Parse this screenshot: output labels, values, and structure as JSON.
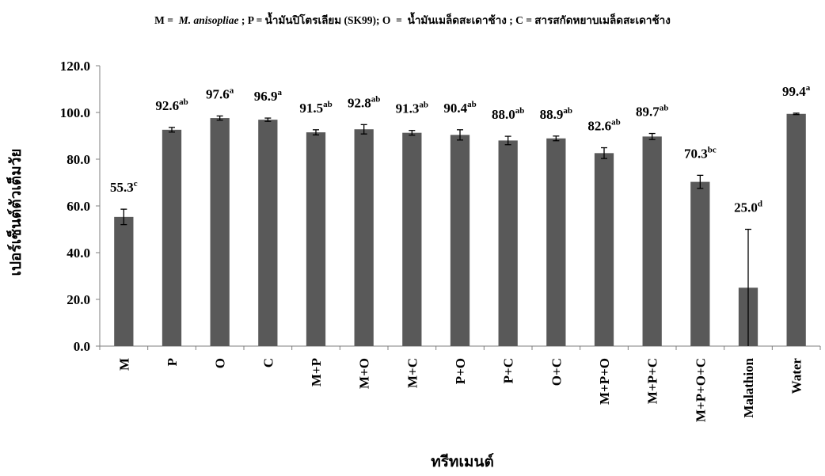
{
  "legend_line": {
    "m_key": "M",
    "eq1": " =  ",
    "m_name": "M. anisopliae",
    "p_part": " ; P = น้ำมันปิโตรเลียม (SK99); O  =  น้ำมันเมล็ดสะเดาช้าง ; C = สารสกัดหยาบเมล็ดสะเดาช้าง"
  },
  "chart_data": {
    "type": "bar",
    "categories": [
      "M",
      "P",
      "O",
      "C",
      "M+P",
      "M+O",
      "M+C",
      "P+O",
      "P+C",
      "O+C",
      "M+P+O",
      "M+P+C",
      "M+P+O+C",
      "Malathion",
      "Water"
    ],
    "values": [
      55.3,
      92.6,
      97.6,
      96.9,
      91.5,
      92.8,
      91.3,
      90.4,
      88.0,
      88.9,
      82.6,
      89.7,
      70.3,
      25.0,
      99.4
    ],
    "error": [
      3.3,
      1.0,
      0.9,
      0.7,
      1.1,
      2.0,
      1.0,
      2.2,
      1.8,
      1.0,
      2.3,
      1.3,
      2.8,
      25.0,
      0.3
    ],
    "value_labels": [
      "55.3",
      "92.6",
      "97.6",
      "96.9",
      "91.5",
      "92.8",
      "91.3",
      "90.4",
      "88.0",
      "88.9",
      "82.6",
      "89.7",
      "70.3",
      "25.0",
      "99.4"
    ],
    "significance": [
      "c",
      "ab",
      "a",
      "a",
      "ab",
      "ab",
      "ab",
      "ab",
      "ab",
      "ab",
      "ab",
      "ab",
      "bc",
      "d",
      "a"
    ],
    "ylabel": "เปอร์เซ็นต์ตัวเต็มวัย",
    "xlabel": "ทรีทเมนต์",
    "ylim": [
      0,
      120
    ],
    "yticks": [
      "0.0",
      "20.0",
      "40.0",
      "60.0",
      "80.0",
      "100.0",
      "120.0"
    ],
    "bar_color": "#595959",
    "grid": false
  }
}
